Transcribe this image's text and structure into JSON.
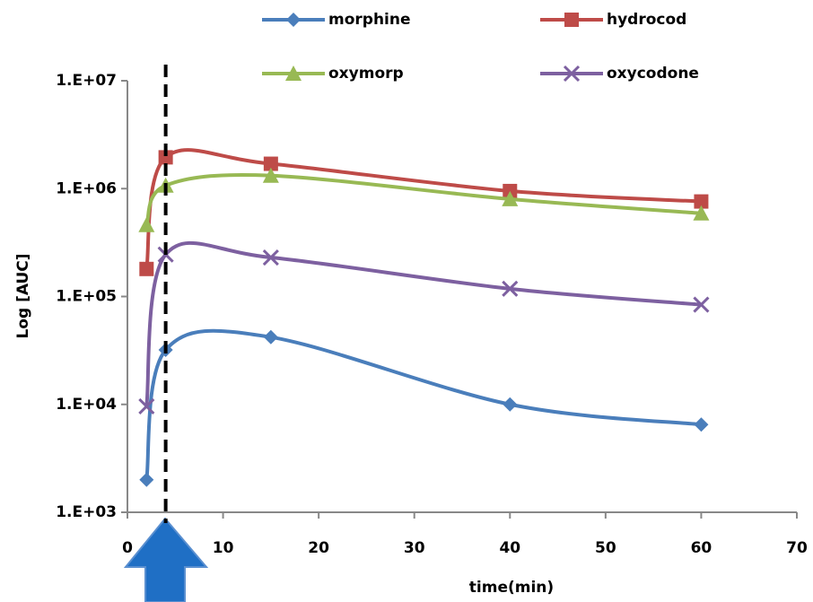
{
  "chart_data": {
    "type": "line",
    "x_label": "time(min)",
    "y_label": "Log [AUC]",
    "x": [
      2,
      4,
      15,
      40,
      60
    ],
    "series": [
      {
        "name": "morphine",
        "color": "#4a7ebb",
        "marker": "diamond",
        "values": [
          2000,
          32000,
          42000,
          10000,
          6500
        ]
      },
      {
        "name": "hydrocod",
        "color": "#be4b48",
        "marker": "square",
        "values": [
          180000,
          1950000,
          1700000,
          950000,
          760000
        ]
      },
      {
        "name": "oxymorp",
        "color": "#98b954",
        "marker": "triangle",
        "values": [
          460000,
          1070000,
          1320000,
          800000,
          590000
        ]
      },
      {
        "name": "oxycodone",
        "color": "#7d60a0",
        "marker": "x",
        "values": [
          9600,
          245000,
          230000,
          118000,
          84000
        ]
      }
    ],
    "xlim": [
      0,
      70
    ],
    "xticks": [
      0,
      10,
      20,
      30,
      40,
      50,
      60,
      70
    ],
    "ylim": [
      1000,
      10000000
    ],
    "yticks": [
      {
        "value": 1000,
        "label": "1.E+03"
      },
      {
        "value": 10000,
        "label": "1.E+04"
      },
      {
        "value": 100000,
        "label": "1.E+05"
      },
      {
        "value": 1000000,
        "label": "1.E+06"
      },
      {
        "value": 10000000,
        "label": "1.E+07"
      }
    ],
    "y_scale": "log",
    "grid": false,
    "smooth": true,
    "legend": "top",
    "reference_line": {
      "x": 4
    }
  }
}
